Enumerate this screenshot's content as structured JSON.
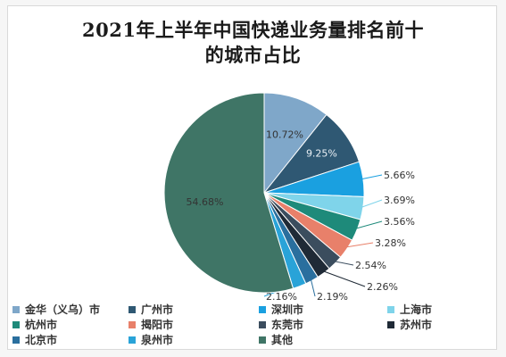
{
  "chart_data": {
    "type": "pie",
    "title_lines": [
      "2021年上半年中国快递业务量排名前十",
      "的城市占比"
    ],
    "legend_placement": "bottom",
    "slices": [
      {
        "name": "金华（义乌）市",
        "value": 10.72,
        "label": "10.72%",
        "color": "#7fa7c9"
      },
      {
        "name": "广州市",
        "value": 9.25,
        "label": "9.25%",
        "color": "#2f5873"
      },
      {
        "name": "深圳市",
        "value": 5.66,
        "label": "5.66%",
        "color": "#1aa0e0"
      },
      {
        "name": "上海市",
        "value": 3.69,
        "label": "3.69%",
        "color": "#7fd4ea"
      },
      {
        "name": "杭州市",
        "value": 3.56,
        "label": "3.56%",
        "color": "#1e8a7a"
      },
      {
        "name": "揭阳市",
        "value": 3.28,
        "label": "3.28%",
        "color": "#e8806a"
      },
      {
        "name": "东莞市",
        "value": 2.54,
        "label": "2.54%",
        "color": "#3b4d5e"
      },
      {
        "name": "苏州市",
        "value": 2.26,
        "label": "2.26%",
        "color": "#1f2a36"
      },
      {
        "name": "北京市",
        "value": 2.19,
        "label": "2.19%",
        "color": "#2a6f9e"
      },
      {
        "name": "泉州市",
        "value": 2.16,
        "label": "2.16%",
        "color": "#29a3d8"
      },
      {
        "name": "其他",
        "value": 54.68,
        "label": "54.68%",
        "color": "#3f7566"
      }
    ]
  }
}
